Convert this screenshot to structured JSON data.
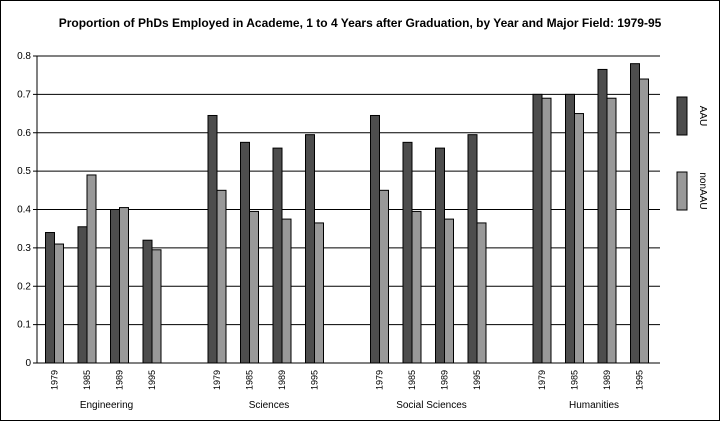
{
  "chart_data": {
    "type": "bar",
    "title": "Proportion of PhDs Employed in Academe, 1 to 4 Years after Graduation, by Year and Major Field: 1979-95",
    "xlabel": "",
    "ylabel": "",
    "ylim": [
      0,
      0.8
    ],
    "yticks": [
      "0",
      "0.1",
      "0.2",
      "0.3",
      "0.4",
      "0.5",
      "0.6",
      "0.7",
      "0.8"
    ],
    "grid": true,
    "legend_position": "right",
    "groups": [
      {
        "label": "Engineering",
        "categories": [
          "1979",
          "1985",
          "1989",
          "1995"
        ]
      },
      {
        "label": "Sciences",
        "categories": [
          "1979",
          "1985",
          "1989",
          "1995"
        ]
      },
      {
        "label": "Social Sciences",
        "categories": [
          "1979",
          "1985",
          "1989",
          "1995"
        ]
      },
      {
        "label": "Humanities",
        "categories": [
          "1979",
          "1985",
          "1989",
          "1995"
        ]
      }
    ],
    "series": [
      {
        "name": "AAU",
        "color": "#4d4d4d",
        "values": [
          [
            0.34,
            0.355,
            0.4,
            0.32
          ],
          [
            0.645,
            0.575,
            0.56,
            0.595
          ],
          [
            0.645,
            0.575,
            0.56,
            0.595
          ],
          [
            0.7,
            0.7,
            0.765,
            0.78
          ]
        ]
      },
      {
        "name": "nonAAU",
        "color": "#999999",
        "values": [
          [
            0.31,
            0.49,
            0.405,
            0.295
          ],
          [
            0.45,
            0.395,
            0.375,
            0.365
          ],
          [
            0.45,
            0.395,
            0.375,
            0.365
          ],
          [
            0.69,
            0.65,
            0.69,
            0.74
          ]
        ]
      }
    ]
  }
}
